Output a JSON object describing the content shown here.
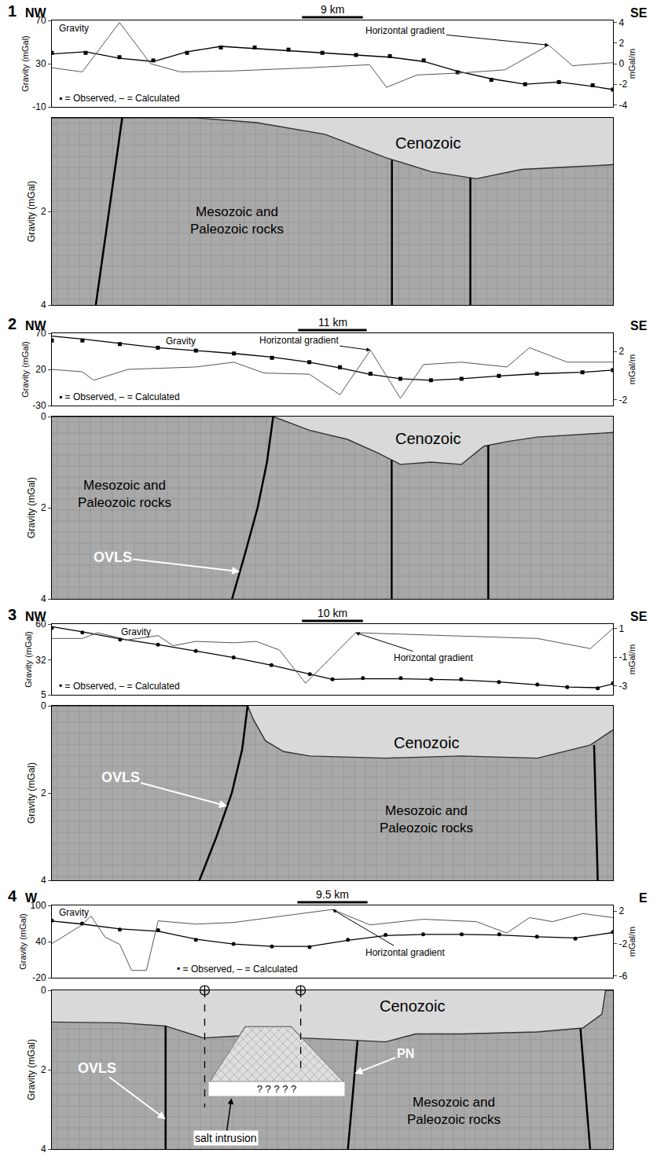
{
  "chart_data": [
    {
      "type": "line",
      "panel": "1",
      "left_label": "NW",
      "right_label": "SE",
      "scale_bar": {
        "length": 9,
        "label": "9 km"
      },
      "grid": false,
      "tick_labels": "y",
      "gravity": {
        "title": "Gravity",
        "ylabel": "Gravity (mGal)",
        "y2label": "mGal/m",
        "legend_text": "▪ = Observed, – = Calculated",
        "xlim": [
          0,
          83
        ],
        "ylim": [
          -10,
          70
        ],
        "yticks": [
          -10,
          30,
          70
        ],
        "y2lim": [
          -4.2,
          4.2
        ],
        "y2ticks": [
          -4,
          -2,
          0,
          2,
          4
        ],
        "series": [
          {
            "name": "Observed",
            "type": "scatter",
            "marker": "square",
            "color": "#000000",
            "x": [
              0,
              5,
              10,
              15,
              20,
              25,
              30,
              35,
              40,
              45,
              50,
              55,
              60,
              65,
              70,
              75,
              80,
              83
            ],
            "values": [
              40,
              40,
              36,
              33,
              40,
              45,
              45,
              43,
              40,
              38,
              37,
              33,
              22,
              15,
              11,
              13,
              10,
              6
            ]
          },
          {
            "name": "Calculated",
            "type": "line",
            "color": "#000000",
            "x": [
              0,
              5,
              10,
              15,
              20,
              25,
              30,
              35,
              40,
              45,
              50,
              55,
              60,
              65,
              70,
              75,
              80,
              83
            ],
            "values": [
              39,
              41,
              35,
              32,
              41,
              46,
              44,
              42,
              40,
              38,
              36,
              32,
              23,
              16,
              11,
              13,
              9,
              6
            ]
          },
          {
            "name": "Horizontal gradient",
            "type": "line",
            "color": "#555555",
            "axis": "y2",
            "x": [
              0,
              4.5,
              10,
              14.6,
              19,
              27,
              38,
              47,
              49.5,
              54,
              60.6,
              67,
              73.5,
              77,
              83
            ],
            "values": [
              -0.4,
              -0.8,
              4.0,
              0.0,
              -0.8,
              -0.7,
              -0.4,
              -0.1,
              -2.3,
              -1.1,
              -0.9,
              -0.6,
              1.8,
              -0.2,
              0.1
            ]
          }
        ]
      },
      "section": {
        "ylabel": "Gravity (mGal)",
        "xlim": [
          0,
          83
        ],
        "ylim": [
          0,
          4
        ],
        "yticks": [
          2,
          4
        ],
        "labels": [
          "Cenozoic",
          "Mesozoic and Paleozoic rocks"
        ],
        "cenozoic_base": {
          "x": [
            0,
            21.3,
            30.3,
            40.4,
            49.4,
            56.1,
            62.8,
            69.5,
            76.3,
            83
          ],
          "depth": [
            0,
            0,
            0.1,
            0.35,
            0.85,
            1.15,
            1.3,
            1.1,
            1.05,
            1.0
          ]
        },
        "faults": [
          {
            "x": [
              10.4,
              6.5
            ],
            "depth": [
              0,
              4
            ]
          },
          {
            "x": [
              50.3,
              50.3
            ],
            "depth": [
              0.9,
              4
            ]
          },
          {
            "x": [
              61.9,
              61.9
            ],
            "depth": [
              1.28,
              4
            ]
          }
        ]
      }
    },
    {
      "type": "line",
      "panel": "2",
      "left_label": "NW",
      "right_label": "SE",
      "scale_bar": {
        "length": 11,
        "label": "11 km"
      },
      "grid": false,
      "tick_labels": "y",
      "gravity": {
        "title": "Gravity",
        "ylabel": "Gravity (mGal)",
        "y2label": "mGal/m",
        "legend_text": "▪ = Observed, – = Calculated",
        "xlim": [
          0,
          90
        ],
        "ylim": [
          -30,
          70
        ],
        "yticks": [
          -30,
          20,
          70
        ],
        "y2lim": [
          -2.5,
          3.5
        ],
        "y2ticks": [
          -2,
          2
        ],
        "series": [
          {
            "name": "Observed",
            "type": "scatter",
            "marker": "square",
            "color": "#000000",
            "x": [
              0,
              4.9,
              10.9,
              17,
              23.1,
              29.2,
              35.3,
              41.3,
              46.2,
              51.1,
              55.9,
              60.8,
              65.7,
              71.7,
              77.8,
              85.1,
              90
            ],
            "values": [
              60,
              60,
              55,
              50,
              46,
              42,
              36,
              30,
              23,
              14,
              7,
              5,
              7,
              11,
              14,
              16,
              19
            ]
          },
          {
            "name": "Calculated",
            "type": "line",
            "color": "#000000",
            "x": [
              0,
              4.9,
              10.9,
              17,
              23.1,
              29.2,
              35.3,
              41.3,
              46.2,
              51.1,
              55.9,
              60.8,
              65.7,
              71.7,
              77.8,
              85.1,
              90
            ],
            "values": [
              66,
              62,
              56,
              50,
              46,
              42,
              37,
              30,
              22,
              13,
              7,
              5,
              7,
              11,
              14,
              16,
              19
            ]
          },
          {
            "name": "Horizontal gradient",
            "type": "line",
            "color": "#555555",
            "axis": "y2",
            "x": [
              0,
              4.9,
              6.7,
              12.2,
              23.1,
              29.2,
              34,
              41.3,
              46.2,
              51.1,
              55.9,
              59.6,
              65.7,
              73,
              76.6,
              82.7,
              90
            ],
            "values": [
              0.5,
              0.3,
              -0.4,
              0.5,
              0.7,
              1.1,
              0.2,
              0.1,
              -1.6,
              2.1,
              -1.9,
              0.9,
              1.1,
              0.7,
              2.3,
              1.1,
              1.1
            ]
          }
        ]
      },
      "section": {
        "ylabel": "Gravity (mGal)",
        "xlim": [
          0,
          90
        ],
        "ylim": [
          0,
          4
        ],
        "yticks": [
          0,
          2,
          4
        ],
        "labels": [
          "Mesozoic and Paleozoic rocks",
          "Cenozoic",
          "OVLS"
        ],
        "cenozoic_base": {
          "x": [
            0,
            35.5,
            41.3,
            47.4,
            52.3,
            55.9,
            60.8,
            65.7,
            69.3,
            73,
            77.8,
            90
          ],
          "depth": [
            0,
            0,
            0.3,
            0.5,
            0.8,
            1.05,
            1.0,
            1.05,
            0.65,
            0.55,
            0.45,
            0.35
          ]
        },
        "faults": [
          {
            "x": [
              35.5,
              34.5,
              33,
              31,
              28.9
            ],
            "depth": [
              0,
              1,
              2,
              3,
              4
            ]
          },
          {
            "x": [
              54.5,
              54.5
            ],
            "depth": [
              0.95,
              4
            ]
          },
          {
            "x": [
              70,
              70
            ],
            "depth": [
              0.63,
              4
            ]
          }
        ]
      }
    },
    {
      "type": "line",
      "panel": "3",
      "left_label": "NW",
      "right_label": "SE",
      "scale_bar": {
        "length": 10,
        "label": "10 km"
      },
      "grid": false,
      "tick_labels": "y",
      "gravity": {
        "title": "Gravity",
        "ylabel": "Gravity (mGal)",
        "y2label": "mGal/m",
        "legend_text": "• = Observed, – = Calculated",
        "xlim": [
          0,
          92
        ],
        "ylim": [
          5,
          60
        ],
        "yticks": [
          5,
          32,
          60
        ],
        "y2lim": [
          -3.6,
          1.3
        ],
        "y2ticks": [
          -3,
          -1,
          1
        ],
        "series": [
          {
            "name": "Observed",
            "type": "scatter",
            "marker": "circle",
            "color": "#000000",
            "x": [
              0,
              5,
              11.2,
              17.4,
              23.6,
              29.8,
              36,
              42.3,
              46,
              51,
              57.2,
              62.2,
              67.1,
              73.3,
              79.6,
              84.5,
              89.5,
              92
            ],
            "values": [
              57,
              53.5,
              48,
              44,
              39,
              34,
              28,
              21,
              17,
              18,
              18,
              17,
              17,
              15,
              13,
              11,
              10,
              14
            ]
          },
          {
            "name": "Calculated",
            "type": "line",
            "color": "#000000",
            "x": [
              0,
              5,
              11.2,
              17.4,
              23.6,
              29.8,
              36,
              42.3,
              46,
              51,
              57.2,
              62.2,
              67.1,
              73.3,
              79.6,
              84.5,
              89.5,
              92
            ],
            "values": [
              58,
              54,
              48.5,
              44,
              39,
              34,
              28,
              21,
              17,
              17.5,
              17.5,
              17,
              16.5,
              15,
              13,
              11,
              10.5,
              13.5
            ]
          },
          {
            "name": "Horizontal gradient",
            "type": "line",
            "color": "#555555",
            "axis": "y2",
            "x": [
              0,
              5,
              7.5,
              12.4,
              17.4,
              19.9,
              23.6,
              29.8,
              33.5,
              37.3,
              41.6,
              49.8,
              64.7,
              79.6,
              88.3,
              92
            ],
            "values": [
              0.3,
              0.3,
              0.7,
              0.2,
              0.5,
              -0.2,
              0.1,
              0.0,
              0.1,
              -0.5,
              -2.8,
              0.7,
              0.5,
              0.3,
              -0.4,
              1.0
            ]
          }
        ]
      },
      "section": {
        "ylabel": "Gravity (mGal)",
        "xlim": [
          0,
          92
        ],
        "ylim": [
          0,
          4
        ],
        "yticks": [
          0,
          2,
          4
        ],
        "labels": [
          "Cenozoic",
          "OVLS",
          "Mesozoic and Paleozoic rocks"
        ],
        "cenozoic_base": {
          "x": [
            0,
            32.1,
            33,
            35,
            38,
            42.3,
            54.7,
            67.1,
            79.6,
            88.3,
            92
          ],
          "depth": [
            0,
            0,
            0.3,
            0.8,
            1.05,
            1.15,
            1.2,
            1.15,
            1.2,
            0.9,
            0.55
          ]
        },
        "faults": [
          {
            "x": [
              32.1,
              31.2,
              29.5,
              27,
              24.2
            ],
            "depth": [
              0,
              1,
              2,
              3,
              4
            ]
          },
          {
            "x": [
              88.9,
              89.5
            ],
            "depth": [
              0.9,
              4
            ]
          }
        ]
      }
    },
    {
      "type": "line",
      "panel": "4",
      "left_label": "W",
      "right_label": "E",
      "scale_bar": {
        "length": 9.5,
        "label": "9.5 km"
      },
      "grid": false,
      "tick_labels": "y",
      "gravity": {
        "title": "Gravity",
        "ylabel": "Gravity (mGal)",
        "y2label": "mGal/m",
        "legend_text": "• = Observed, – = Calculated",
        "xlim": [
          0,
          76
        ],
        "ylim": [
          -20,
          100
        ],
        "yticks": [
          -20,
          40,
          100
        ],
        "y2lim": [
          -6.2,
          2.7
        ],
        "y2ticks": [
          -6,
          -2,
          2
        ],
        "series": [
          {
            "name": "Observed",
            "type": "scatter",
            "marker": "circle",
            "color": "#000000",
            "x": [
              0,
              4.1,
              9.2,
              14.4,
              19.5,
              24.6,
              29.8,
              34.9,
              40.1,
              45.2,
              50.3,
              55.5,
              60.6,
              65.7,
              70.9,
              76
            ],
            "values": [
              75,
              70,
              60,
              59,
              43,
              36,
              32,
              31,
              43,
              51,
              52,
              52,
              52,
              48,
              45,
              56
            ]
          },
          {
            "name": "Calculated",
            "type": "line",
            "color": "#000000",
            "x": [
              0,
              4.1,
              9.2,
              14.4,
              19.5,
              24.6,
              29.8,
              34.9,
              40.1,
              45.2,
              50.3,
              55.5,
              60.6,
              65.7,
              70.9,
              76
            ],
            "values": [
              74,
              69,
              61,
              57,
              44,
              36,
              32,
              32,
              42,
              50,
              52,
              52,
              51,
              48,
              46,
              55
            ]
          },
          {
            "name": "Horizontal gradient",
            "type": "line",
            "color": "#555555",
            "axis": "y2",
            "x": [
              0,
              4.1,
              5.3,
              7.2,
              9.2,
              10.8,
              12.8,
              14.4,
              19.5,
              24.6,
              38,
              43.1,
              50.3,
              57.5,
              61.6,
              64.7,
              67.8,
              71.9,
              76
            ],
            "values": [
              -2.0,
              0.3,
              1.4,
              -1.2,
              -2.1,
              -5.3,
              -5.3,
              0.8,
              0.4,
              0.6,
              2.2,
              0.3,
              1.0,
              0.7,
              -0.7,
              1.2,
              0.7,
              1.7,
              1.2
            ]
          }
        ]
      },
      "section": {
        "ylabel": "Gravity (mGal)",
        "xlim": [
          0,
          76
        ],
        "ylim": [
          0,
          4
        ],
        "yticks": [
          0,
          2,
          4
        ],
        "labels": [
          "Cenozoic",
          "OVLS",
          "PN",
          "Mesozoic and Paleozoic rocks",
          "salt intrusion",
          "? ? ? ? ?"
        ],
        "cenozoic_base": {
          "x": [
            0,
            9.2,
            15.4,
            20.5,
            25.4,
            26.2,
            32.4,
            33.8,
            40,
            45.2,
            49.3,
            55.5,
            65.7,
            71.9,
            74.5,
            75,
            76
          ],
          "depth": [
            0.8,
            0.82,
            0.9,
            1.2,
            1.15,
            0.92,
            0.92,
            1.2,
            1.25,
            1.3,
            1.1,
            1.1,
            1.05,
            0.95,
            0.6,
            0,
            0
          ]
        },
        "faults": [
          {
            "x": [
              15.4,
              15.4
            ],
            "depth": [
              0.9,
              4
            ]
          },
          {
            "x": [
              41.4,
              40.1
            ],
            "depth": [
              1.27,
              4
            ]
          },
          {
            "x": [
              71.6,
              72.9
            ],
            "depth": [
              0.97,
              4
            ]
          }
        ],
        "salt_body": {
          "x": [
            26.2,
            32.4,
            39.5,
            21.4
          ],
          "depth": [
            0.92,
            0.92,
            2.3,
            2.3
          ]
        },
        "wells": [
          {
            "x": 20.7,
            "depth": 2.95
          },
          {
            "x": 33.7,
            "depth": 2.1
          }
        ]
      }
    }
  ]
}
